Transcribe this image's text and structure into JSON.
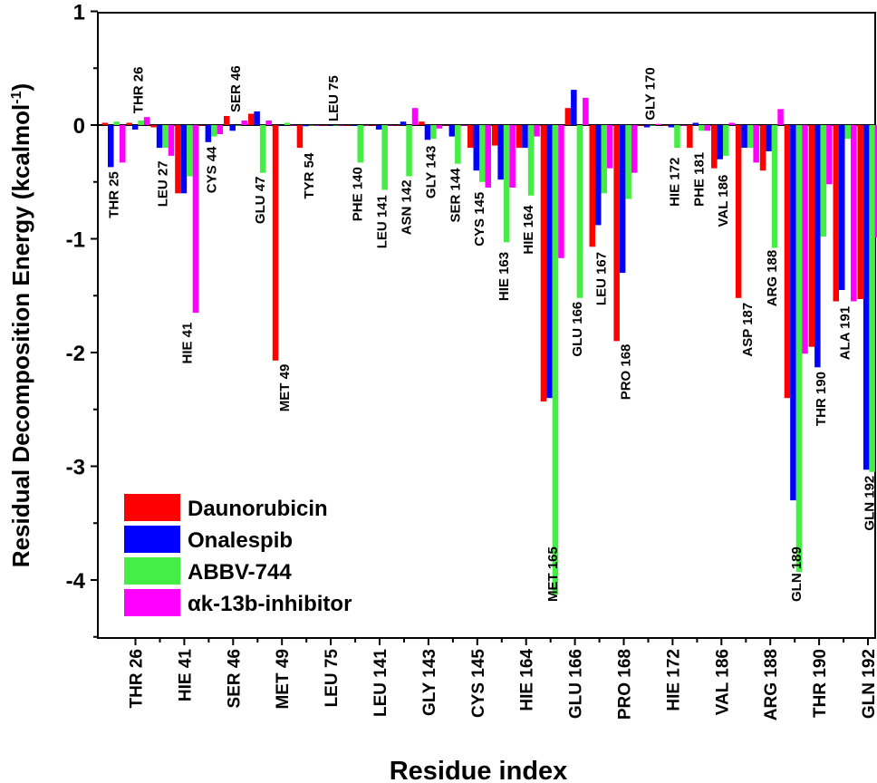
{
  "chart_data": {
    "type": "bar",
    "title": "",
    "xlabel": "Residue index",
    "ylabel_main": "Residual Decomposition Energy (kcalmol",
    "ylabel_sup": "-1",
    "ylabel_close": ")",
    "ylim": [
      -4.5,
      1.0
    ],
    "yticks": [
      1,
      0,
      -1,
      -2,
      -3,
      -4
    ],
    "ytick_labels": [
      "1",
      "0",
      "-1",
      "-2",
      "-3",
      "-4"
    ],
    "residues": [
      "THR 25",
      "THR 26",
      "LEU 27",
      "HIE 41",
      "CYS 44",
      "SER 46",
      "GLU 47",
      "MET 49",
      "TYR 54",
      "LEU 75",
      "PHE 140",
      "LEU 141",
      "ASN 142",
      "GLY 143",
      "SER 144",
      "CYS 145",
      "HIE 163",
      "HIE 164",
      "MET 165",
      "GLU 166",
      "LEU 167",
      "PRO 168",
      "GLY 170",
      "HIE 172",
      "PHE 181",
      "VAL 186",
      "ASP 187",
      "ARG 188",
      "GLN 189",
      "THR 190",
      "ALA 191",
      "GLN 192"
    ],
    "xtick_labels": [
      "THR 26",
      "HIE 41",
      "SER 46",
      "MET 49",
      "LEU 75",
      "LEU 141",
      "GLY 143",
      "CYS 145",
      "HIE 164",
      "GLU 166",
      "PRO 168",
      "HIE 172",
      "VAL 186",
      "ARG 188",
      "THR 190",
      "GLN 192"
    ],
    "series": [
      {
        "name": "Daunorubicin",
        "color": "#ff0000",
        "values": [
          0.02,
          0.02,
          -0.02,
          -0.6,
          0.0,
          0.08,
          0.1,
          -2.07,
          -0.2,
          0.0,
          0.0,
          0.0,
          0.0,
          0.03,
          0.0,
          -0.2,
          -0.18,
          -0.2,
          -2.43,
          0.15,
          -1.07,
          -1.9,
          0.0,
          0.0,
          -0.2,
          -0.38,
          -1.52,
          -0.4,
          -2.4,
          -1.95,
          -1.55,
          -1.53
        ]
      },
      {
        "name": "Onalespib",
        "color": "#0000ff",
        "values": [
          -0.37,
          -0.04,
          -0.2,
          -0.6,
          -0.15,
          -0.05,
          0.12,
          0.0,
          -0.01,
          0.0,
          0.0,
          -0.04,
          0.03,
          -0.13,
          -0.1,
          -0.4,
          -0.48,
          -0.2,
          -2.4,
          0.31,
          -0.88,
          -1.3,
          -0.02,
          -0.02,
          0.02,
          -0.3,
          -0.2,
          -0.23,
          -3.3,
          -2.13,
          -1.45,
          -3.03
        ]
      },
      {
        "name": "ABBV-744",
        "color": "#44ee44",
        "values": [
          0.03,
          0.04,
          -0.2,
          -0.45,
          -0.1,
          0.0,
          -0.42,
          0.02,
          0.0,
          0.0,
          -0.33,
          -0.57,
          -0.45,
          -0.12,
          -0.34,
          -0.5,
          -1.03,
          -0.62,
          -4.13,
          -1.52,
          -0.6,
          -0.65,
          0.0,
          -0.2,
          -0.05,
          -0.27,
          -0.2,
          -1.08,
          -3.93,
          -0.98,
          -0.12,
          -3.05
        ]
      },
      {
        "name": "αk-13b-inhibitor",
        "color": "#ff00ff",
        "values": [
          -0.33,
          0.07,
          -0.27,
          -1.65,
          -0.08,
          0.04,
          0.04,
          0.0,
          0.0,
          0.0,
          0.0,
          0.0,
          0.15,
          -0.03,
          0.0,
          -0.55,
          -0.55,
          -0.1,
          -1.17,
          0.24,
          -0.38,
          -0.42,
          0.01,
          0.0,
          -0.05,
          0.02,
          -0.33,
          0.14,
          -2.01,
          -0.52,
          -1.55,
          -0.99
        ]
      }
    ],
    "legend": [
      "Daunorubicin",
      "Onalespib",
      "ABBV-744",
      "αk-13b-inhibitor"
    ],
    "legend_position": "bottom-left"
  }
}
